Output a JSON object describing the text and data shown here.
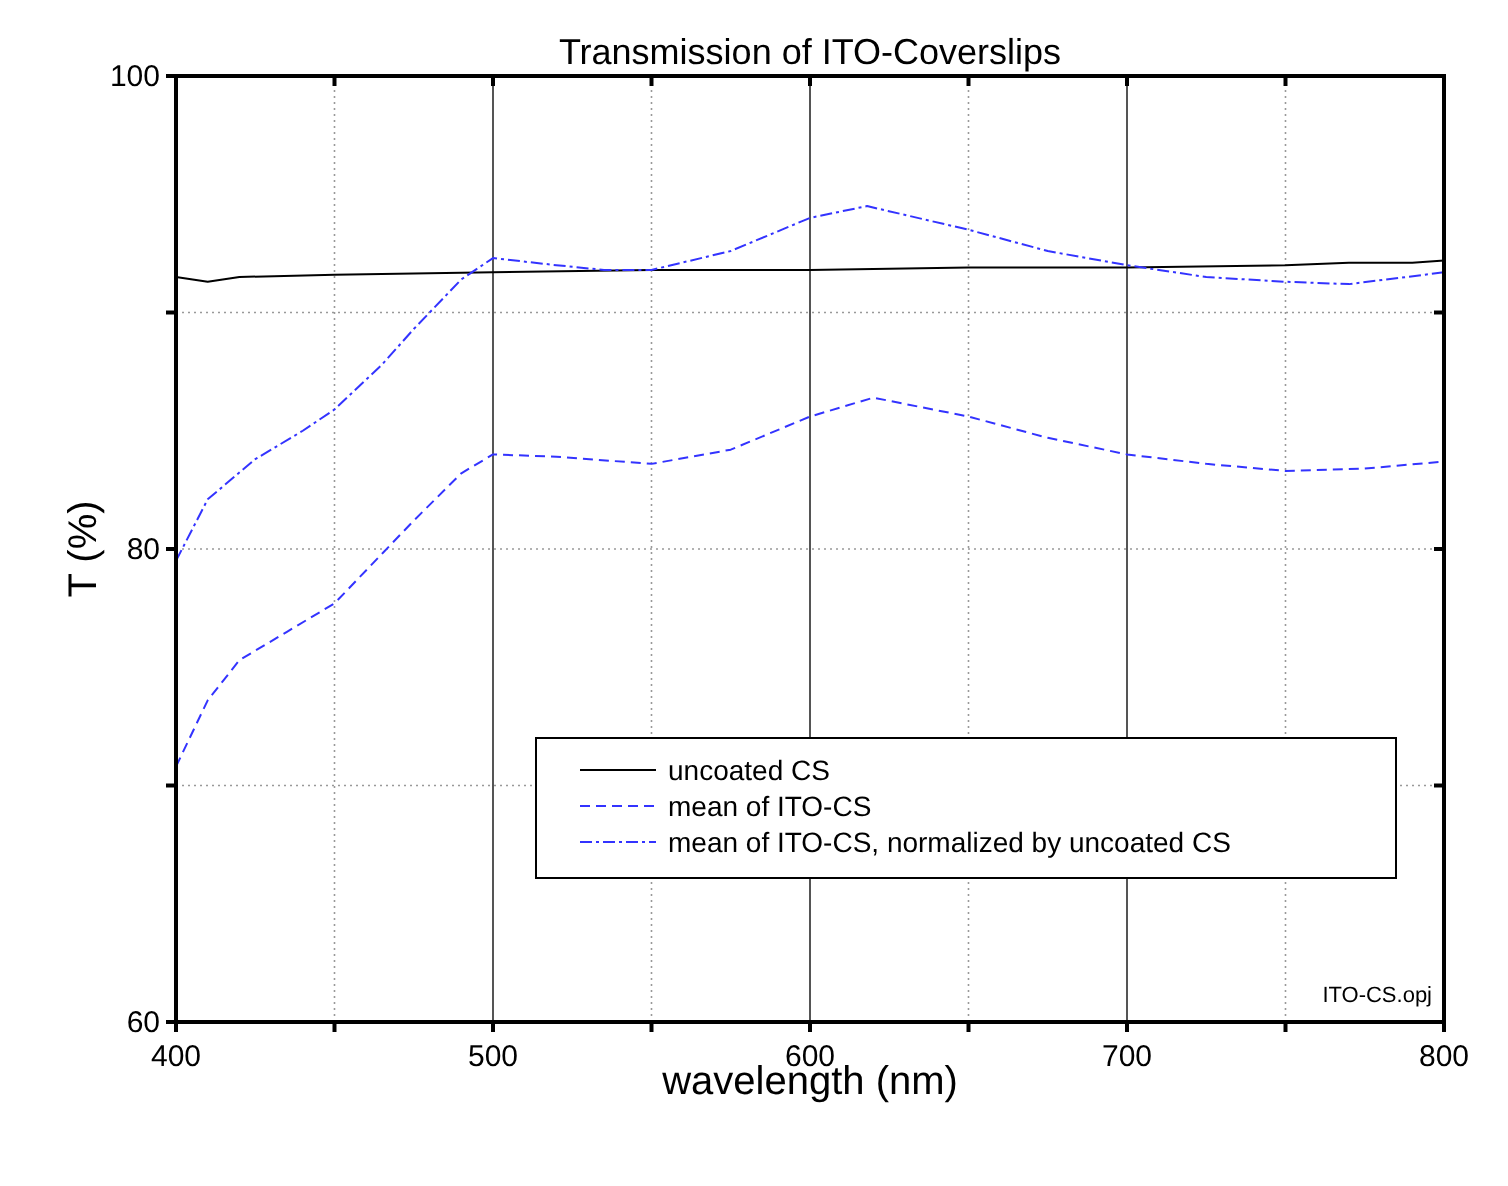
{
  "chart_data": {
    "type": "line",
    "title": "Transmission of ITO-Coverslips",
    "xlabel": "wavelength (nm)",
    "ylabel": "T (%)",
    "xlim": [
      400,
      800
    ],
    "ylim": [
      60,
      100
    ],
    "xticks": [
      400,
      {
        "value": 450,
        "label": null
      },
      500,
      {
        "value": 550,
        "label": null
      },
      600,
      {
        "value": 650,
        "label": null
      },
      700,
      {
        "value": 750,
        "label": null
      },
      800
    ],
    "yticks": [
      60,
      {
        "value": 70,
        "label": null
      },
      80,
      {
        "value": 90,
        "label": null
      },
      100
    ],
    "grid": true,
    "legend": "bottom right",
    "marker": "none",
    "annotations": [
      "ITO-CS.opj"
    ],
    "series": [
      {
        "name": "uncoated CS",
        "color": "#000000",
        "line_style": "solid",
        "x": [
          400,
          410,
          420,
          450,
          500,
          550,
          600,
          650,
          700,
          750,
          770,
          790,
          800
        ],
        "values": [
          91.5,
          91.3,
          91.5,
          91.6,
          91.7,
          91.8,
          91.8,
          91.9,
          91.9,
          92.0,
          92.1,
          92.1,
          92.2
        ]
      },
      {
        "name": "mean of ITO-CS",
        "color": "#3333ff",
        "line_style": "dashed",
        "x": [
          400,
          410,
          420,
          435,
          450,
          465,
          475,
          490,
          500,
          520,
          550,
          575,
          600,
          620,
          650,
          675,
          700,
          725,
          750,
          775,
          800
        ],
        "values": [
          70.8,
          73.6,
          75.3,
          76.5,
          77.7,
          79.8,
          81.2,
          83.2,
          84.0,
          83.9,
          83.6,
          84.2,
          85.6,
          86.4,
          85.6,
          84.7,
          84.0,
          83.6,
          83.3,
          83.4,
          83.7
        ]
      },
      {
        "name": "mean of ITO-CS, normalized by uncoated CS",
        "color": "#3333ff",
        "line_style": "dashdot",
        "x": [
          400,
          410,
          425,
          440,
          450,
          465,
          475,
          490,
          500,
          520,
          535,
          550,
          575,
          600,
          618,
          650,
          675,
          700,
          725,
          750,
          770,
          800
        ],
        "values": [
          79.5,
          82.1,
          83.8,
          85.0,
          85.9,
          87.8,
          89.3,
          91.4,
          92.3,
          92.0,
          91.8,
          91.8,
          92.6,
          94.0,
          94.5,
          93.5,
          92.6,
          92.0,
          91.5,
          91.3,
          91.2,
          91.7
        ]
      }
    ]
  }
}
